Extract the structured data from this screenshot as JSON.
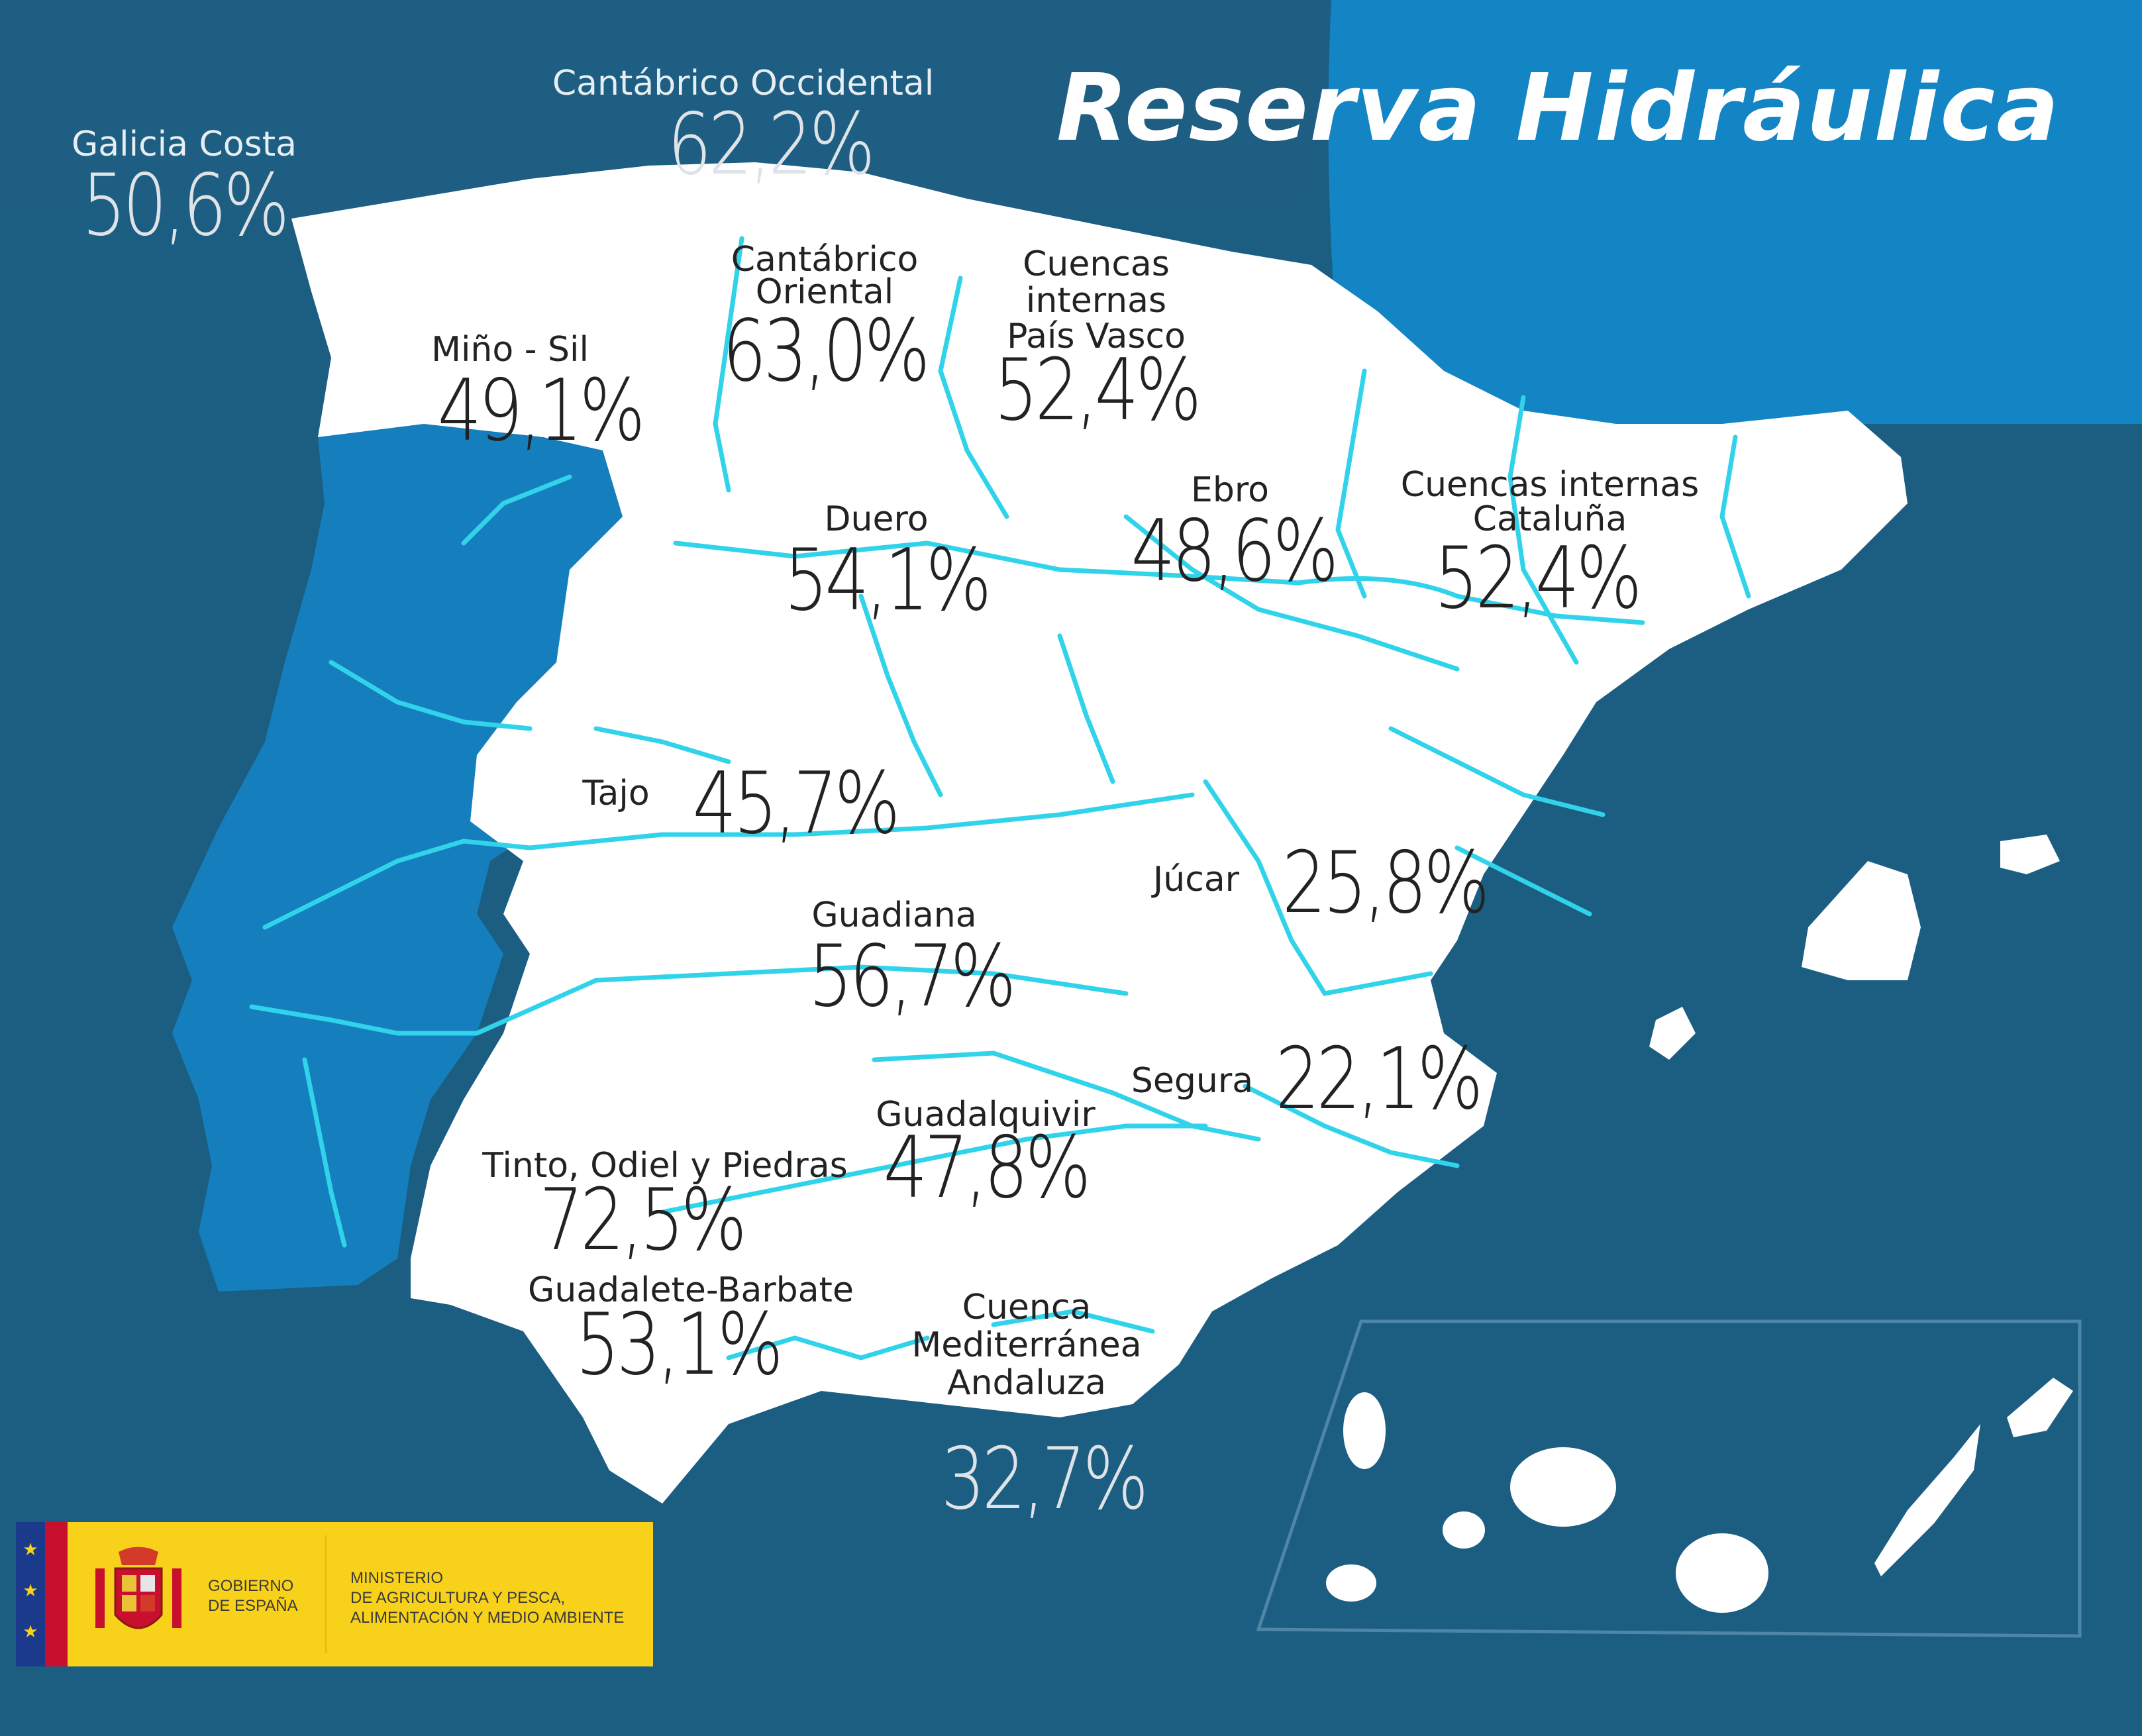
{
  "title": "Reserva Hidráulica",
  "colors": {
    "sea": "#1b5e82",
    "portugal": "#157fbe",
    "spain": "#ffffff",
    "rivers": "#31d3ea",
    "logo_bg": "#f8d11b"
  },
  "basins": [
    {
      "id": "galicia-costa",
      "name": "Galicia Costa",
      "value": "50,6%"
    },
    {
      "id": "cantabrico-occidental",
      "name": "Cantábrico Occidental",
      "value": "62,2%"
    },
    {
      "id": "mino-sil",
      "name": "Miño - Sil",
      "value": "49,1%"
    },
    {
      "id": "cantabrico-oriental",
      "name": "Cantábrico\nOriental",
      "value": "63,0%"
    },
    {
      "id": "pais-vasco",
      "name": "Cuencas\ninternas\nPaís Vasco",
      "value": "52,4%"
    },
    {
      "id": "duero",
      "name": "Duero",
      "value": "54,1%"
    },
    {
      "id": "ebro",
      "name": "Ebro",
      "value": "48,6%"
    },
    {
      "id": "cataluna",
      "name": "Cuencas internas\nCataluña",
      "value": "52,4%"
    },
    {
      "id": "tajo",
      "name": "Tajo",
      "value": "45,7%"
    },
    {
      "id": "jucar",
      "name": "Júcar",
      "value": "25,8%"
    },
    {
      "id": "guadiana",
      "name": "Guadiana",
      "value": "56,7%"
    },
    {
      "id": "segura",
      "name": "Segura",
      "value": "22,1%"
    },
    {
      "id": "guadalquivir",
      "name": "Guadalquivir",
      "value": "47,8%"
    },
    {
      "id": "tinto-odiel-piedras",
      "name": "Tinto, Odiel y Piedras",
      "value": "72,5%"
    },
    {
      "id": "guadalete-barbate",
      "name": "Guadalete-Barbate",
      "value": "53,1%"
    },
    {
      "id": "mediterranea-andaluza",
      "name": "Cuenca\nMediterránea\nAndaluza",
      "value": "32,7%"
    }
  ],
  "logo": {
    "gobierno": "GOBIERNO\nDE ESPAÑA",
    "ministerio": "MINISTERIO\nDE AGRICULTURA Y PESCA,\nALIMENTACIÓN Y MEDIO AMBIENTE"
  }
}
